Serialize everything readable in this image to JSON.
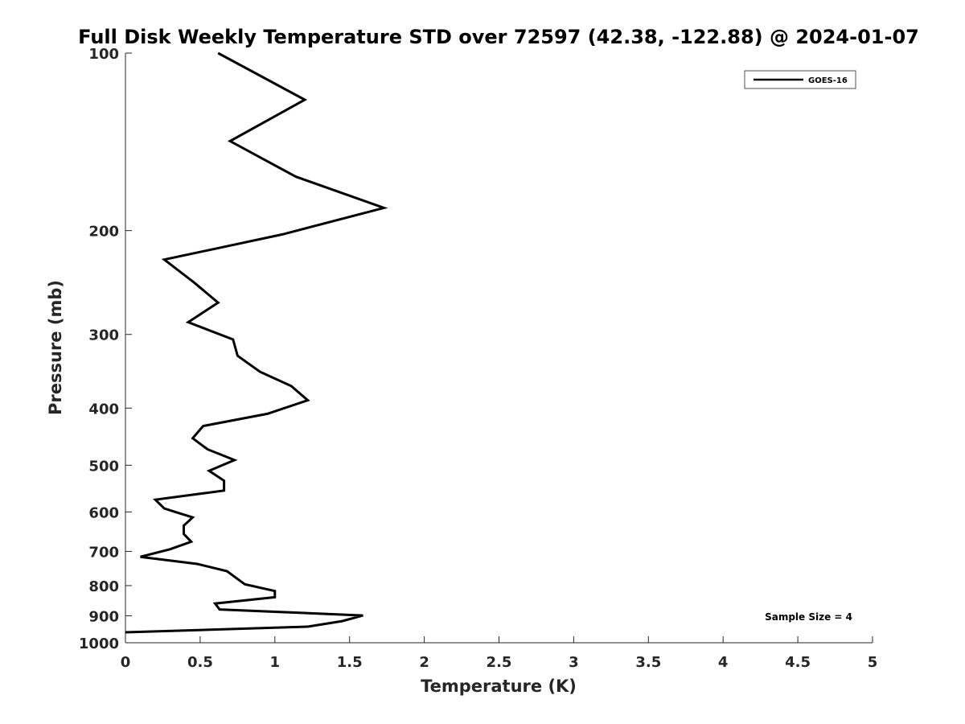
{
  "chart_data": {
    "type": "line",
    "title": "Full Disk Weekly Temperature STD over 72597 (42.38, -122.88) @ 2024-01-07",
    "xlabel": "Temperature (K)",
    "ylabel": "Pressure (mb)",
    "xlim": [
      0,
      5
    ],
    "ylim": [
      100,
      1000
    ],
    "y_scale": "log",
    "y_reversed": true,
    "x_ticks": [
      "0",
      "0.5",
      "1",
      "1.5",
      "2",
      "2.5",
      "3",
      "3.5",
      "4",
      "4.5",
      "5"
    ],
    "y_ticks": [
      "100",
      "200",
      "300",
      "400",
      "500",
      "600",
      "700",
      "800",
      "900",
      "1000"
    ],
    "grid": false,
    "legend": {
      "position": "top-right",
      "entries": [
        "GOES-16"
      ]
    },
    "annotation": "Sample Size = 4",
    "series": [
      {
        "name": "GOES-16",
        "color": "#000000",
        "points": [
          [
            0.62,
            100
          ],
          [
            1.2,
            120
          ],
          [
            0.7,
            141
          ],
          [
            1.14,
            162
          ],
          [
            1.73,
            183
          ],
          [
            1.05,
            203
          ],
          [
            0.26,
            224
          ],
          [
            0.46,
            245
          ],
          [
            0.62,
            265
          ],
          [
            0.42,
            286
          ],
          [
            0.72,
            306
          ],
          [
            0.75,
            326
          ],
          [
            0.9,
            347
          ],
          [
            1.11,
            367
          ],
          [
            1.22,
            388
          ],
          [
            0.95,
            409
          ],
          [
            0.52,
            429
          ],
          [
            0.45,
            450
          ],
          [
            0.55,
            470
          ],
          [
            0.73,
            490
          ],
          [
            0.56,
            511
          ],
          [
            0.66,
            531
          ],
          [
            0.66,
            552
          ],
          [
            0.2,
            572
          ],
          [
            0.26,
            592
          ],
          [
            0.45,
            613
          ],
          [
            0.39,
            633
          ],
          [
            0.39,
            654
          ],
          [
            0.44,
            674
          ],
          [
            0.3,
            694
          ],
          [
            0.1,
            715
          ],
          [
            0.48,
            735
          ],
          [
            0.68,
            756
          ],
          [
            0.74,
            776
          ],
          [
            0.8,
            796
          ],
          [
            1.0,
            817
          ],
          [
            1.0,
            837
          ],
          [
            0.6,
            858
          ],
          [
            0.63,
            878
          ],
          [
            1.59,
            899
          ],
          [
            1.45,
            919
          ],
          [
            1.22,
            939
          ],
          [
            0.0,
            960
          ]
        ]
      }
    ]
  }
}
